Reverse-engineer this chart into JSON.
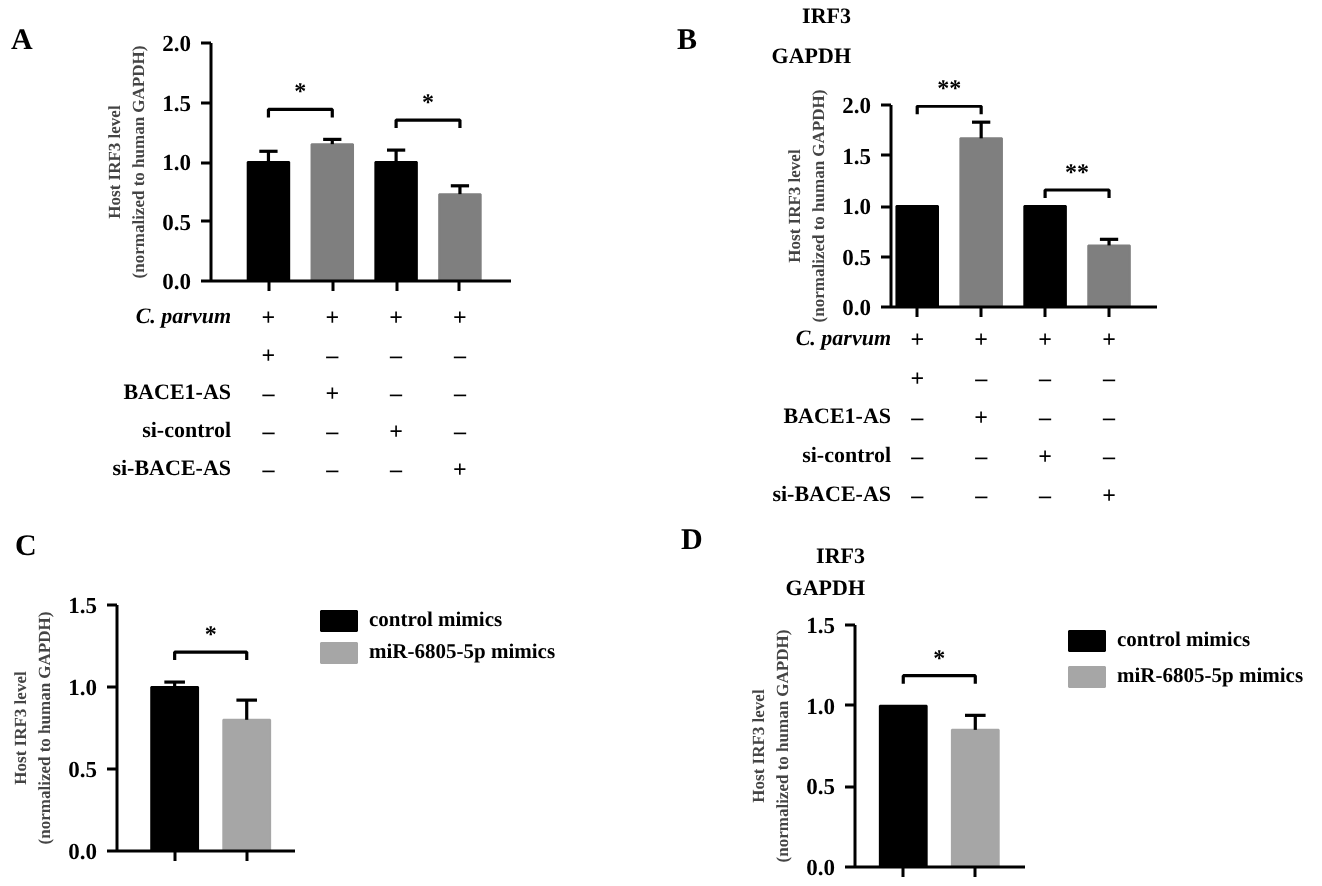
{
  "chart_data": [
    {
      "type": "bar",
      "title": "A",
      "categories": [
        "+\n+\n–\n–\n–",
        "+\n–\n+\n–\n–",
        "+\n–\n–\n+\n–",
        "+\n–\n–\n–\n+"
      ],
      "xlabel": "C. parvum\n\nBACE1-AS\nsi-control\nsi-BACE-AS",
      "ylabel": "Host IRF3 level\n(normalized to human GAPDH)",
      "values": [
        1.0,
        1.15,
        1.0,
        0.73
      ],
      "colors": [
        "#000000",
        "#7f7f7f",
        "#000000",
        "#7f7f7f"
      ],
      "errors": [
        [
          1.0,
          1.09
        ],
        [
          1.15,
          1.19
        ],
        [
          1.0,
          1.1
        ],
        [
          0.73,
          0.8
        ]
      ],
      "ylim": [
        0,
        2
      ],
      "yticks": [
        {
          "value": 0,
          "label": "0.0"
        },
        {
          "value": 0.5,
          "label": "0.5"
        },
        {
          "value": 1,
          "label": "1.0"
        },
        {
          "value": 1.5,
          "label": "1.5"
        },
        {
          "value": 2,
          "label": "2.0"
        }
      ],
      "annotations": [
        "*",
        "*"
      ]
    },
    {
      "type": "bar",
      "title": "B",
      "categories": [
        "+\n+\n–\n–\n–",
        "+\n–\n+\n–\n–",
        "+\n–\n–\n+\n–",
        "+\n–\n–\n–\n+"
      ],
      "xlabel": "C. parvum\n\nBACE1-AS\nsi-control\nsi-BACE-AS",
      "ylabel": "Host IRF3 level\n(normalized to human GAPDH)",
      "values": [
        1.0,
        1.67,
        1.0,
        0.61
      ],
      "colors": [
        "#000000",
        "#7f7f7f",
        "#000000",
        "#7f7f7f"
      ],
      "errors": [
        null,
        [
          1.67,
          1.83
        ],
        null,
        [
          0.61,
          0.67
        ]
      ],
      "ylim": [
        0,
        2
      ],
      "yticks": [
        {
          "value": 0,
          "label": "0.0"
        },
        {
          "value": 0.5,
          "label": "0.5"
        },
        {
          "value": 1,
          "label": "1.0"
        },
        {
          "value": 1.5,
          "label": "1.5"
        },
        {
          "value": 2,
          "label": "2.0"
        }
      ],
      "annotations": [
        "**",
        "**",
        "IRF3",
        "GAPDH"
      ]
    },
    {
      "type": "bar",
      "title": "C",
      "categories": [
        null,
        null
      ],
      "ylabel": "Host IRF3 level\n(normalized to human GAPDH)",
      "series": [
        {
          "name": "control mimics",
          "color": "#000000",
          "values": [
            1.0,
            null
          ],
          "errors": [
            [
              1.0,
              1.03
            ],
            null
          ]
        },
        {
          "name": "miR-6805-5p mimics",
          "color": "#a6a6a6",
          "values": [
            null,
            0.8
          ],
          "errors": [
            null,
            [
              0.8,
              0.92
            ]
          ]
        }
      ],
      "ylim": [
        0,
        1.5
      ],
      "yticks": [
        {
          "value": 0,
          "label": "0.0"
        },
        {
          "value": 0.5,
          "label": "0.5"
        },
        {
          "value": 1,
          "label": "1.0"
        },
        {
          "value": 1.5,
          "label": "1.5"
        }
      ],
      "legend": "right",
      "annotations": [
        "*"
      ]
    },
    {
      "type": "bar",
      "title": "D",
      "categories": [
        null,
        null
      ],
      "ylabel": "Host IRF3 level\n(normalized to human GAPDH)",
      "series": [
        {
          "name": "control mimics",
          "color": "#000000",
          "values": [
            1.0,
            null
          ],
          "errors": [
            null,
            null
          ]
        },
        {
          "name": "miR-6805-5p mimics",
          "color": "#a6a6a6",
          "values": [
            null,
            0.85
          ],
          "errors": [
            null,
            [
              0.85,
              0.94
            ]
          ]
        }
      ],
      "ylim": [
        0,
        1.5
      ],
      "yticks": [
        {
          "value": 0,
          "label": "0.0"
        },
        {
          "value": 0.5,
          "label": "0.5"
        },
        {
          "value": 1,
          "label": "1.0"
        },
        {
          "value": 1.5,
          "label": "1.5"
        }
      ],
      "legend": "right",
      "annotations": [
        "*",
        "IRF3",
        "GAPDH"
      ]
    }
  ]
}
